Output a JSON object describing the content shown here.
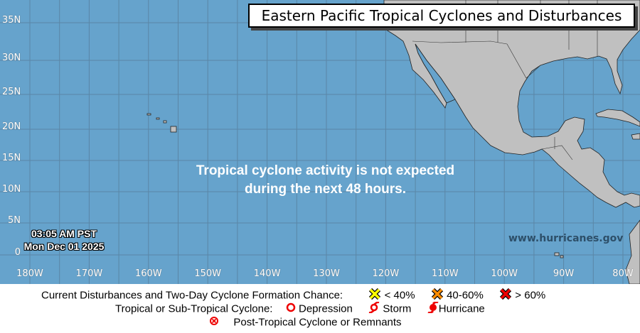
{
  "title": "Eastern Pacific Tropical Cyclones and Disturbances",
  "message": {
    "line1": "Tropical cyclone activity is not expected",
    "line2": "during the next 48 hours."
  },
  "timestamp": {
    "time": "03:05 AM PST",
    "date": "Mon Dec 01 2025"
  },
  "website": "www.hurricanes.gov",
  "latitude_labels": [
    "35N",
    "30N",
    "25N",
    "20N",
    "15N",
    "10N",
    "5N",
    "0"
  ],
  "longitude_labels": [
    "180W",
    "170W",
    "160W",
    "150W",
    "140W",
    "130W",
    "120W",
    "110W",
    "100W",
    "90W",
    "80W"
  ],
  "colors": {
    "ocean": "#66a3cc",
    "land": "#c0c0c0",
    "low": "#ffff00",
    "medium": "#ff8c00",
    "high": "#ee0000",
    "cyclone": "#ee0000"
  },
  "legend": {
    "disturbances_label": "Current Disturbances and Two-Day Cyclone Formation Chance:",
    "low": "< 40%",
    "medium": "40-60%",
    "high": "> 60%",
    "cyclone_label": "Tropical or Sub-Tropical Cyclone:",
    "depression": "Depression",
    "storm": "Storm",
    "hurricane": "Hurricane",
    "post_tropical": "Post-Tropical Cyclone or Remnants"
  }
}
